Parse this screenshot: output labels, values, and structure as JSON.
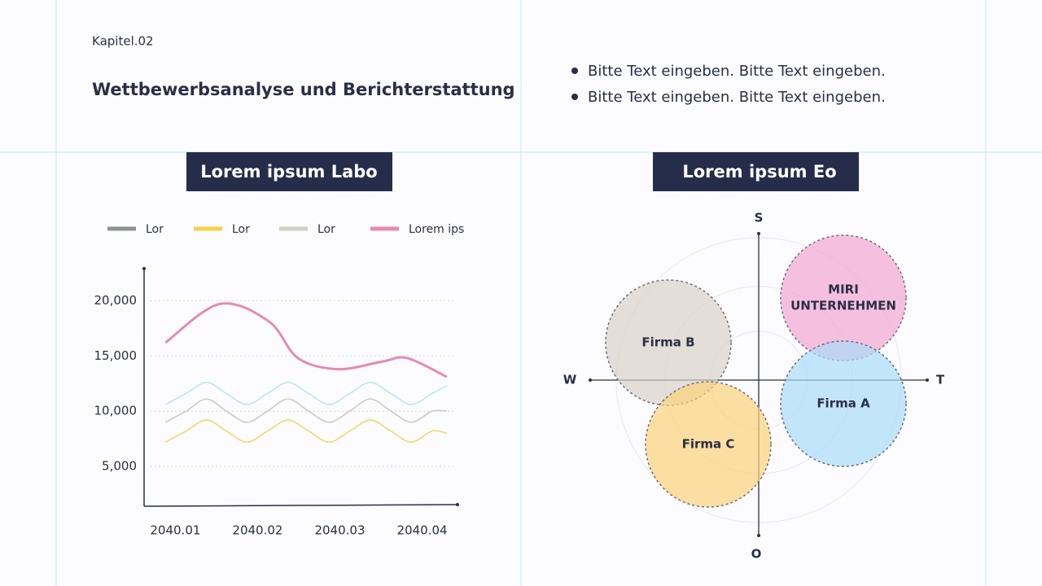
{
  "header": {
    "chapter": "Kapitel.02",
    "title": "Wettbewerbsanalyse und Berichterstattung"
  },
  "bullets": [
    "Bitte Text eingeben. Bitte Text eingeben.",
    "Bitte Text eingeben. Bitte Text eingeben."
  ],
  "chart_data": {
    "type": "line",
    "title": "Lorem ipsum Labo",
    "xlim": [
      0.62,
      4.43
    ],
    "xticks": [
      {
        "value": 1,
        "label": "2040.01"
      },
      {
        "value": 2,
        "label": "2040.02"
      },
      {
        "value": 3,
        "label": "2040.03"
      },
      {
        "value": 4,
        "label": "2040.04"
      }
    ],
    "ylim": [
      1400,
      22900
    ],
    "yticks": [
      {
        "value": 5000,
        "label": "5,000"
      },
      {
        "value": 10000,
        "label": "10,000"
      },
      {
        "value": 15000,
        "label": "15,000"
      },
      {
        "value": 20000,
        "label": "20,000"
      }
    ],
    "grid": true,
    "series": [
      {
        "name": "Lor",
        "color": "#8e938f",
        "line_color": "#bde4f6",
        "x": [
          0.88,
          1.13,
          1.38,
          1.62,
          1.87,
          2.12,
          2.37,
          2.62,
          2.87,
          3.12,
          3.37,
          3.62,
          3.87,
          4.12,
          4.3
        ],
        "values": [
          10600,
          11600,
          12600,
          11600,
          10600,
          11600,
          12600,
          11600,
          10600,
          11600,
          12600,
          11600,
          10600,
          11600,
          12300
        ]
      },
      {
        "name": "Lor",
        "color": "#f9cf4a",
        "line_color": "#f9d468",
        "x": [
          0.88,
          1.13,
          1.38,
          1.62,
          1.87,
          2.12,
          2.37,
          2.62,
          2.87,
          3.12,
          3.37,
          3.62,
          3.87,
          4.12,
          4.3
        ],
        "values": [
          7200,
          8200,
          9200,
          8200,
          7200,
          8200,
          9200,
          8200,
          7200,
          8200,
          9200,
          8200,
          7200,
          8200,
          8000
        ]
      },
      {
        "name": "Lor",
        "color": "#d0d0c6",
        "line_color": "#cbcbc4",
        "x": [
          0.88,
          1.13,
          1.38,
          1.62,
          1.87,
          2.12,
          2.37,
          2.62,
          2.87,
          3.12,
          3.37,
          3.62,
          3.87,
          4.12,
          4.3
        ],
        "values": [
          9000,
          10000,
          11100,
          10000,
          9000,
          10000,
          11100,
          10000,
          9000,
          10000,
          11100,
          10000,
          9000,
          10000,
          10000
        ]
      },
      {
        "name": "Lorem ips",
        "color": "#e58bb3",
        "line_color": "#e58bb3",
        "x": [
          0.88,
          1.54,
          2.14,
          2.49,
          2.98,
          3.52,
          3.82,
          4.3
        ],
        "values": [
          16200,
          19700,
          18100,
          14800,
          13800,
          14500,
          14800,
          13100
        ]
      }
    ]
  },
  "diagram": {
    "title": "Lorem ipsum Eo",
    "axes": {
      "top": "S",
      "left": "W",
      "right": "T",
      "bottom": "O"
    },
    "circles": [
      {
        "lines": [
          "MIRI",
          "UNTERNEHMEN"
        ],
        "color": "#f2a7d2"
      },
      {
        "lines": [
          "Firma B"
        ],
        "color": "#d9d2c6"
      },
      {
        "lines": [
          "Firma A"
        ],
        "color": "#a9dcf8"
      },
      {
        "lines": [
          "Firma C"
        ],
        "color": "#fbd37a"
      }
    ]
  }
}
